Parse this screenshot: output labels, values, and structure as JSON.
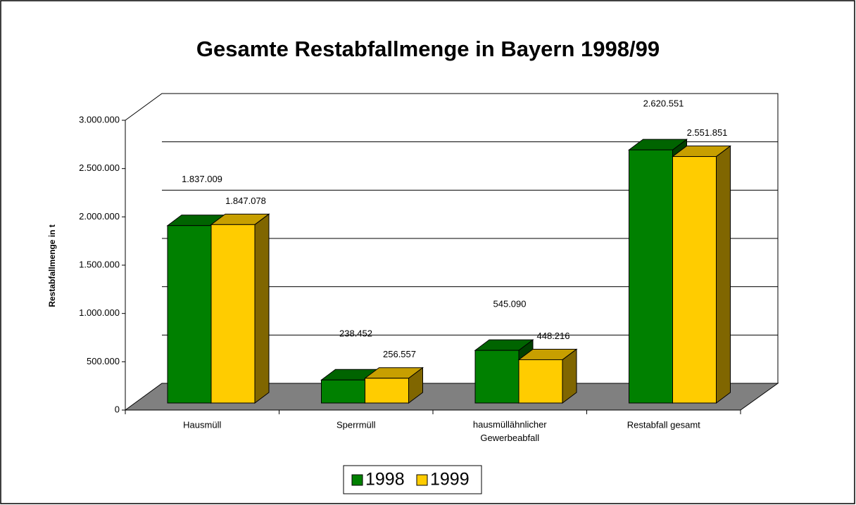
{
  "chart_data": {
    "type": "bar3d",
    "title": "Gesamte Restabfallmenge in Bayern 1998/99",
    "y_label": "Restabfallmenge in t",
    "categories": [
      "Hausmüll",
      "Sperrmüll",
      "hausmüllähnlicher\nGewerbeabfall",
      "Restabfall gesamt"
    ],
    "series": [
      {
        "name": "1998",
        "color": "#008000",
        "values": [
          1837009,
          238452,
          545090,
          2620551
        ],
        "value_labels": [
          "1.837.009",
          "238.452",
          "545.090",
          "2.620.551"
        ]
      },
      {
        "name": "1999",
        "color": "#ffcc00",
        "values": [
          1847078,
          256557,
          448216,
          2551851
        ],
        "value_labels": [
          "1.847.078",
          "256.557",
          "448.216",
          "2.551.851"
        ]
      }
    ],
    "ylim": [
      0,
      3000000
    ],
    "yticks": [
      0,
      {
        "value": 500000,
        "label": "500.000"
      },
      {
        "value": 1000000,
        "label": "1.000.000"
      },
      {
        "value": 1500000,
        "label": "1.500.000"
      },
      {
        "value": 2000000,
        "label": "2.000.000"
      },
      {
        "value": 2500000,
        "label": "2.500.000"
      },
      {
        "value": 3000000,
        "label": "3.000.000"
      }
    ],
    "grid": true,
    "legend": "bottom"
  }
}
